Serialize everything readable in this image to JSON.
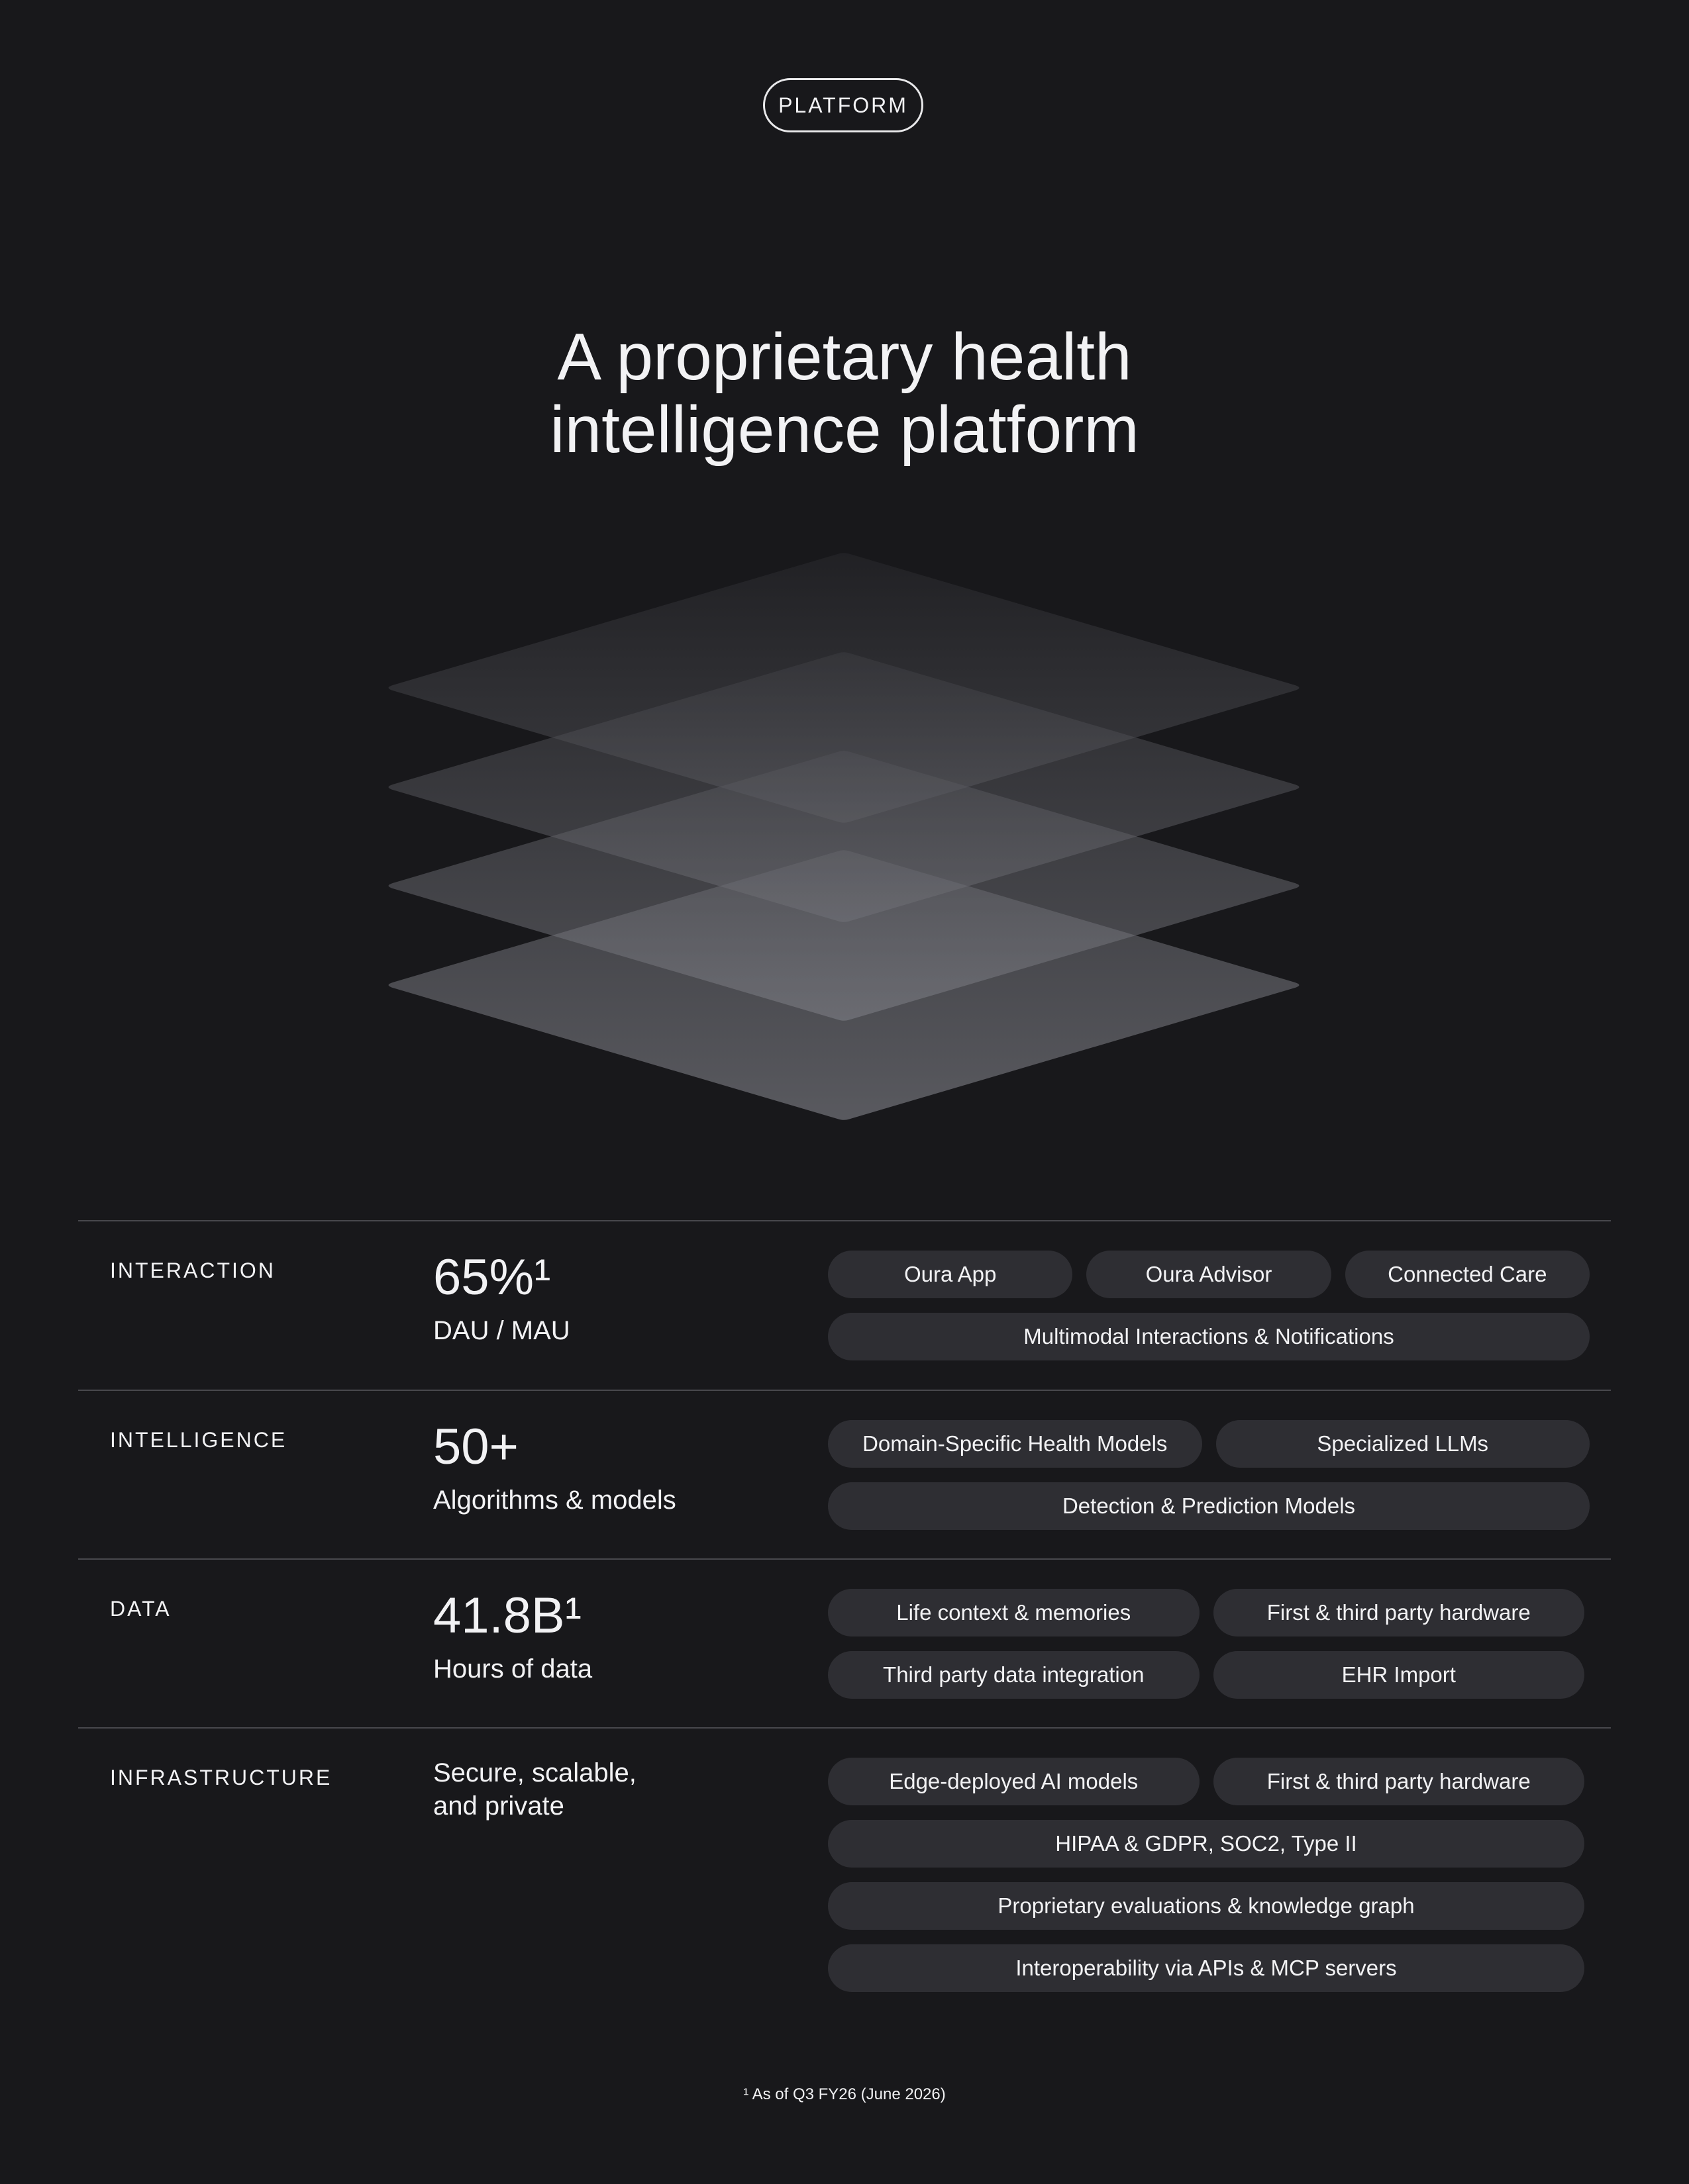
{
  "header": {
    "badge": "PLATFORM",
    "title_lines": [
      "A proprietary health",
      "intelligence platform"
    ]
  },
  "rows": [
    {
      "label": "INTERACTION",
      "stat": "65%¹",
      "sub": "DAU / MAU",
      "pills": [
        [
          "Oura App",
          "Oura Advisor",
          "Connected Care"
        ],
        [
          "Multimodal Interactions & Notifications"
        ]
      ]
    },
    {
      "label": "INTELLIGENCE",
      "stat": "50+",
      "sub": "Algorithms & models",
      "pills": [
        [
          "Domain-Specific Health Models",
          "Specialized LLMs"
        ],
        [
          "Detection & Prediction Models"
        ]
      ]
    },
    {
      "label": "DATA",
      "stat": "41.8B¹",
      "sub": "Hours of data",
      "pills": [
        [
          "Life context & memories",
          "First & third party hardware"
        ],
        [
          "Third party data integration",
          "EHR Import"
        ]
      ]
    },
    {
      "label": "INFRASTRUCTURE",
      "sub": "Secure, scalable,\nand private",
      "pills": [
        [
          "Edge-deployed AI models",
          "First & third party hardware"
        ],
        [
          "HIPAA & GDPR, SOC2, Type II"
        ],
        [
          "Proprietary evaluations & knowledge graph"
        ],
        [
          "Interoperability via APIs & MCP servers"
        ]
      ]
    }
  ],
  "footnote": "¹ As of Q3 FY26 (June 2026)"
}
